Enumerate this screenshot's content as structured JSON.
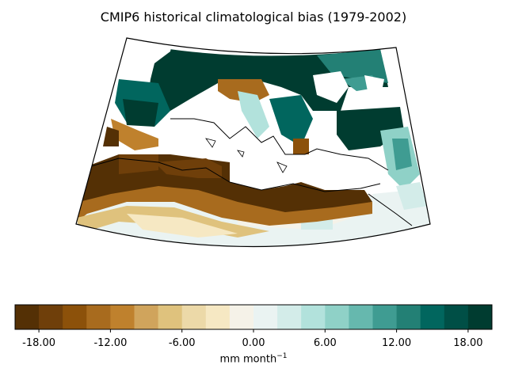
{
  "title": "CMIP6 historical climatological bias (1979-2002)",
  "colorbar": {
    "label": "mm month",
    "label_exponent": "−1",
    "ticks": [
      "-18.00",
      "-12.00",
      "-6.00",
      "0.00",
      "6.00",
      "12.00",
      "18.00"
    ],
    "tick_values": [
      -18,
      -12,
      -6,
      0,
      6,
      12,
      18
    ],
    "range": [
      -20,
      20
    ],
    "step": 2,
    "colors": [
      "#543005",
      "#6f3f0a",
      "#8c510a",
      "#a86b1e",
      "#bf812d",
      "#d0a45c",
      "#dfc27d",
      "#ecd9a8",
      "#f6e8c3",
      "#f5f2e8",
      "#eaf3f2",
      "#d3ece9",
      "#b2e2dc",
      "#8fd1c7",
      "#66b8ae",
      "#3f9c92",
      "#238075",
      "#01665e",
      "#004f46",
      "#003c30"
    ]
  },
  "map": {
    "colormap": "BrBG",
    "projection": "conic",
    "region": "Mediterranean"
  }
}
